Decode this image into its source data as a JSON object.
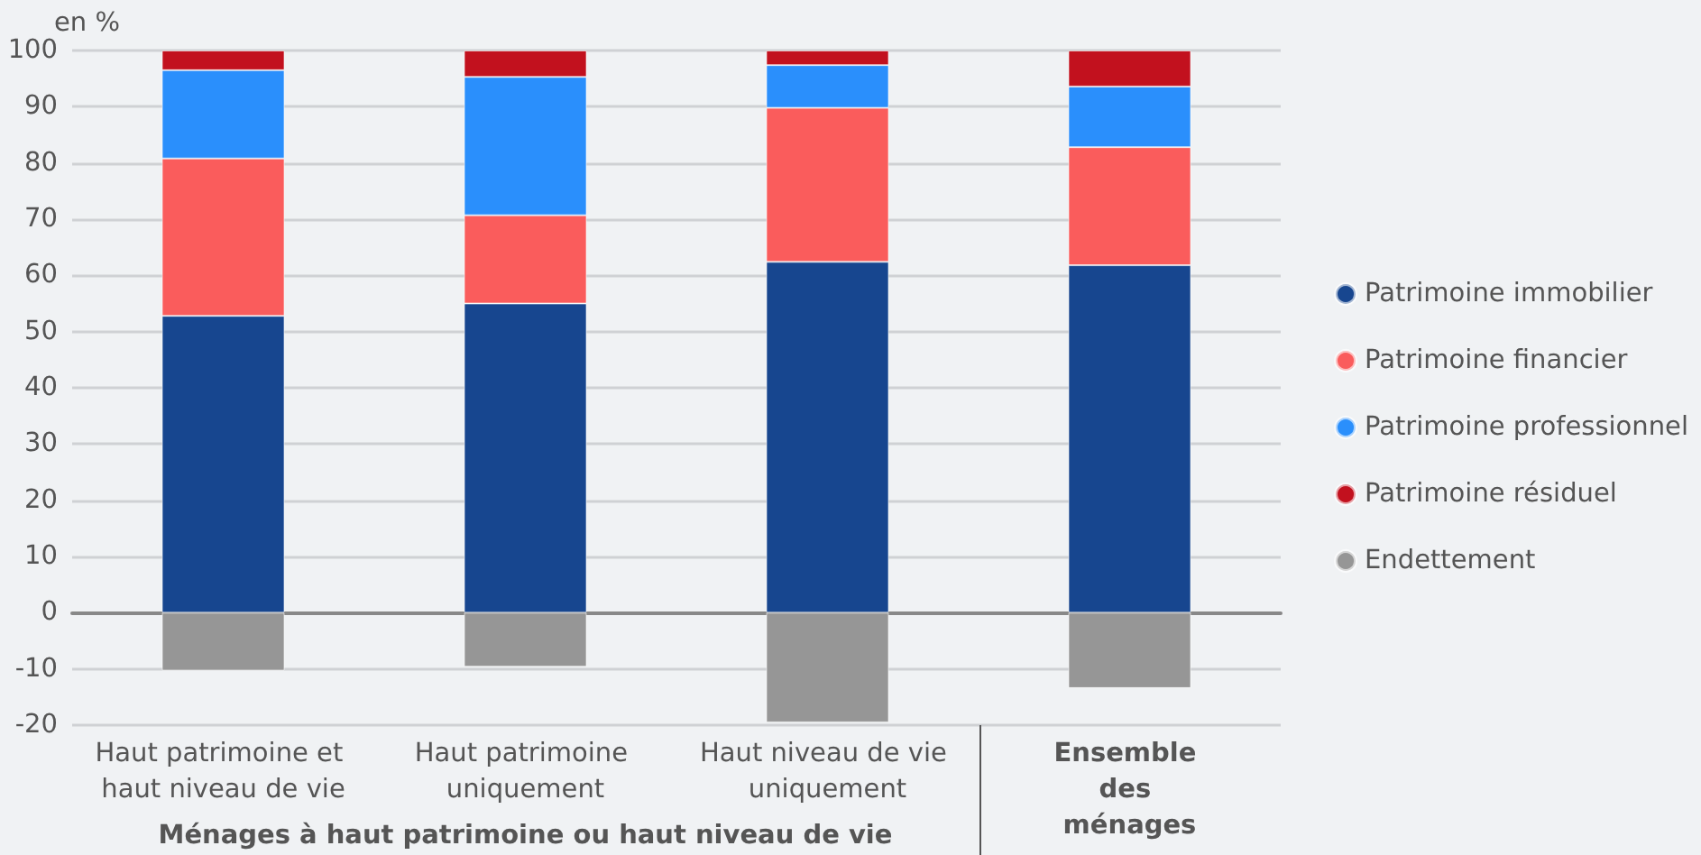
{
  "chart_data": {
    "type": "bar",
    "stacked": true,
    "ylabel": "en %",
    "xlabel": "Ménages à haut patrimoine ou haut niveau de vie",
    "categories": [
      "Haut patrimoine et haut niveau de vie",
      "Haut patrimoine uniquement",
      "Haut niveau de vie uniquement",
      "Ensemble des ménages"
    ],
    "series": [
      {
        "name": "Patrimoine immobilier",
        "color": "#17468f",
        "values": [
          52.8,
          55.0,
          62.4,
          61.8
        ]
      },
      {
        "name": "Patrimoine financier",
        "color": "#fa5c5c",
        "values": [
          28.0,
          15.7,
          27.4,
          21.0
        ]
      },
      {
        "name": "Patrimoine professionnel",
        "color": "#2a8ffc",
        "values": [
          15.7,
          24.6,
          7.6,
          10.8
        ]
      },
      {
        "name": "Patrimoine résiduel",
        "color": "#c2111e",
        "values": [
          3.5,
          4.7,
          2.6,
          6.4
        ]
      },
      {
        "name": "Endettement",
        "color": "#969696",
        "values": [
          -10.3,
          -9.6,
          -19.5,
          -13.4
        ]
      }
    ],
    "ylim": [
      -20,
      100
    ],
    "yticks": [
      -20,
      -10,
      0,
      10,
      20,
      30,
      40,
      50,
      60,
      70,
      80,
      90,
      100
    ],
    "grid": "y",
    "legend": "right"
  }
}
